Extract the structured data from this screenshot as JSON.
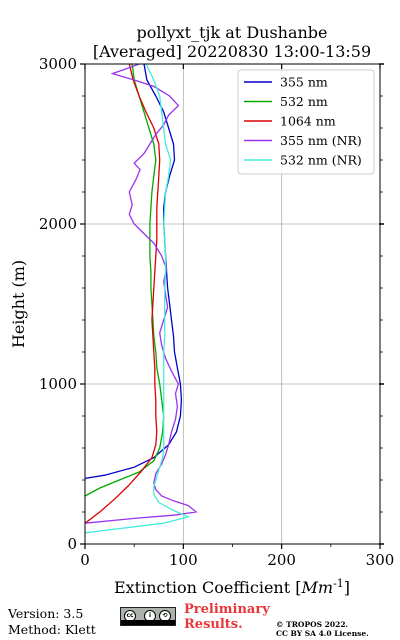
{
  "chart_data": {
    "type": "line",
    "title": "pollyxt_tjk at Dushanbe",
    "subtitle": "[Averaged] 20220830 13:00-13:59",
    "xlabel": "Extinction Coefficient [Mm^-1]",
    "ylabel": "Height (m)",
    "xlim": [
      0,
      300
    ],
    "ylim": [
      0,
      3000
    ],
    "xticks": [
      "0",
      "100",
      "200",
      "300"
    ],
    "yticks": [
      "0",
      "1000",
      "2000",
      "3000"
    ],
    "grid": true,
    "legend_position": "top-right",
    "series": [
      {
        "name": "355 nm",
        "color": "#0000cc",
        "points": [
          [
            0,
            410
          ],
          [
            20,
            430
          ],
          [
            50,
            480
          ],
          [
            70,
            540
          ],
          [
            85,
            620
          ],
          [
            93,
            700
          ],
          [
            97,
            800
          ],
          [
            98,
            900
          ],
          [
            97,
            1000
          ],
          [
            94,
            1100
          ],
          [
            91,
            1200
          ],
          [
            90,
            1300
          ],
          [
            88,
            1400
          ],
          [
            86,
            1500
          ],
          [
            84,
            1600
          ],
          [
            83,
            1700
          ],
          [
            82,
            1800
          ],
          [
            81,
            1900
          ],
          [
            80,
            2000
          ],
          [
            80,
            2100
          ],
          [
            82,
            2200
          ],
          [
            86,
            2300
          ],
          [
            91,
            2400
          ],
          [
            90,
            2500
          ],
          [
            85,
            2600
          ],
          [
            80,
            2700
          ],
          [
            72,
            2800
          ],
          [
            63,
            2900
          ],
          [
            60,
            3000
          ]
        ]
      },
      {
        "name": "532 nm",
        "color": "#00aa00",
        "points": [
          [
            0,
            300
          ],
          [
            15,
            350
          ],
          [
            35,
            400
          ],
          [
            55,
            450
          ],
          [
            70,
            520
          ],
          [
            76,
            600
          ],
          [
            79,
            700
          ],
          [
            80,
            800
          ],
          [
            78,
            900
          ],
          [
            76,
            1000
          ],
          [
            73,
            1100
          ],
          [
            72,
            1200
          ],
          [
            70,
            1300
          ],
          [
            69,
            1400
          ],
          [
            68,
            1500
          ],
          [
            67,
            1600
          ],
          [
            67,
            1700
          ],
          [
            66,
            1800
          ],
          [
            66,
            1900
          ],
          [
            66,
            2000
          ],
          [
            67,
            2100
          ],
          [
            68,
            2200
          ],
          [
            70,
            2300
          ],
          [
            72,
            2400
          ],
          [
            70,
            2500
          ],
          [
            65,
            2600
          ],
          [
            60,
            2700
          ],
          [
            55,
            2800
          ],
          [
            50,
            2900
          ],
          [
            48,
            3000
          ]
        ]
      },
      {
        "name": "1064 nm",
        "color": "#dd0000",
        "points": [
          [
            0,
            130
          ],
          [
            15,
            200
          ],
          [
            30,
            280
          ],
          [
            45,
            370
          ],
          [
            58,
            460
          ],
          [
            68,
            540
          ],
          [
            72,
            620
          ],
          [
            73,
            700
          ],
          [
            72,
            800
          ],
          [
            72,
            900
          ],
          [
            71,
            1000
          ],
          [
            71,
            1100
          ],
          [
            70,
            1200
          ],
          [
            69,
            1300
          ],
          [
            68,
            1400
          ],
          [
            69,
            1500
          ],
          [
            70,
            1600
          ],
          [
            71,
            1700
          ],
          [
            72,
            1800
          ],
          [
            73,
            1900
          ],
          [
            73,
            2000
          ],
          [
            73,
            2100
          ],
          [
            74,
            2200
          ],
          [
            75,
            2300
          ],
          [
            76,
            2400
          ],
          [
            75,
            2500
          ],
          [
            70,
            2600
          ],
          [
            62,
            2700
          ],
          [
            55,
            2800
          ],
          [
            49,
            2900
          ],
          [
            45,
            3000
          ]
        ]
      },
      {
        "name": "355 nm (NR)",
        "color": "#9933ee",
        "points": [
          [
            0,
            130
          ],
          [
            50,
            160
          ],
          [
            90,
            180
          ],
          [
            113,
            200
          ],
          [
            105,
            240
          ],
          [
            90,
            270
          ],
          [
            78,
            300
          ],
          [
            72,
            340
          ],
          [
            70,
            380
          ],
          [
            72,
            440
          ],
          [
            78,
            500
          ],
          [
            82,
            560
          ],
          [
            85,
            620
          ],
          [
            88,
            700
          ],
          [
            92,
            780
          ],
          [
            94,
            860
          ],
          [
            92,
            940
          ],
          [
            95,
            1000
          ],
          [
            88,
            1080
          ],
          [
            82,
            1160
          ],
          [
            78,
            1240
          ],
          [
            76,
            1320
          ],
          [
            80,
            1400
          ],
          [
            84,
            1480
          ],
          [
            82,
            1560
          ],
          [
            80,
            1640
          ],
          [
            83,
            1720
          ],
          [
            78,
            1800
          ],
          [
            70,
            1880
          ],
          [
            60,
            1940
          ],
          [
            50,
            2000
          ],
          [
            45,
            2060
          ],
          [
            48,
            2120
          ],
          [
            45,
            2200
          ],
          [
            52,
            2280
          ],
          [
            56,
            2340
          ],
          [
            50,
            2380
          ],
          [
            60,
            2440
          ],
          [
            66,
            2500
          ],
          [
            72,
            2560
          ],
          [
            80,
            2620
          ],
          [
            85,
            2680
          ],
          [
            95,
            2740
          ],
          [
            86,
            2800
          ],
          [
            70,
            2860
          ],
          [
            50,
            2900
          ],
          [
            28,
            2940
          ],
          [
            42,
            2970
          ],
          [
            55,
            3000
          ]
        ]
      },
      {
        "name": "532 nm (NR)",
        "color": "#44eedd",
        "points": [
          [
            0,
            70
          ],
          [
            40,
            100
          ],
          [
            80,
            130
          ],
          [
            105,
            170
          ],
          [
            90,
            210
          ],
          [
            75,
            260
          ],
          [
            70,
            310
          ],
          [
            70,
            360
          ],
          [
            73,
            420
          ],
          [
            76,
            480
          ],
          [
            79,
            540
          ],
          [
            80,
            600
          ],
          [
            80,
            700
          ],
          [
            80,
            800
          ],
          [
            80,
            900
          ],
          [
            80,
            1000
          ],
          [
            80,
            1100
          ],
          [
            80,
            1200
          ],
          [
            81,
            1300
          ],
          [
            81,
            1400
          ],
          [
            81,
            1500
          ],
          [
            81,
            1600
          ],
          [
            82,
            1700
          ],
          [
            82,
            1800
          ],
          [
            81,
            1900
          ],
          [
            80,
            2000
          ],
          [
            81,
            2100
          ],
          [
            82,
            2200
          ],
          [
            85,
            2300
          ],
          [
            87,
            2400
          ],
          [
            82,
            2500
          ],
          [
            80,
            2600
          ],
          [
            78,
            2700
          ],
          [
            76,
            2800
          ],
          [
            70,
            2900
          ],
          [
            62,
            3000
          ]
        ]
      }
    ]
  },
  "footer": {
    "version": "Version: 3.5",
    "method": "Method: Klett",
    "preliminary_line1": "Preliminary",
    "preliminary_line2": "Results.",
    "copyright_line1": "© TROPOS 2022.",
    "copyright_line2": "CC BY SA 4.0 License.",
    "license_badge_text": "cc by sa"
  }
}
